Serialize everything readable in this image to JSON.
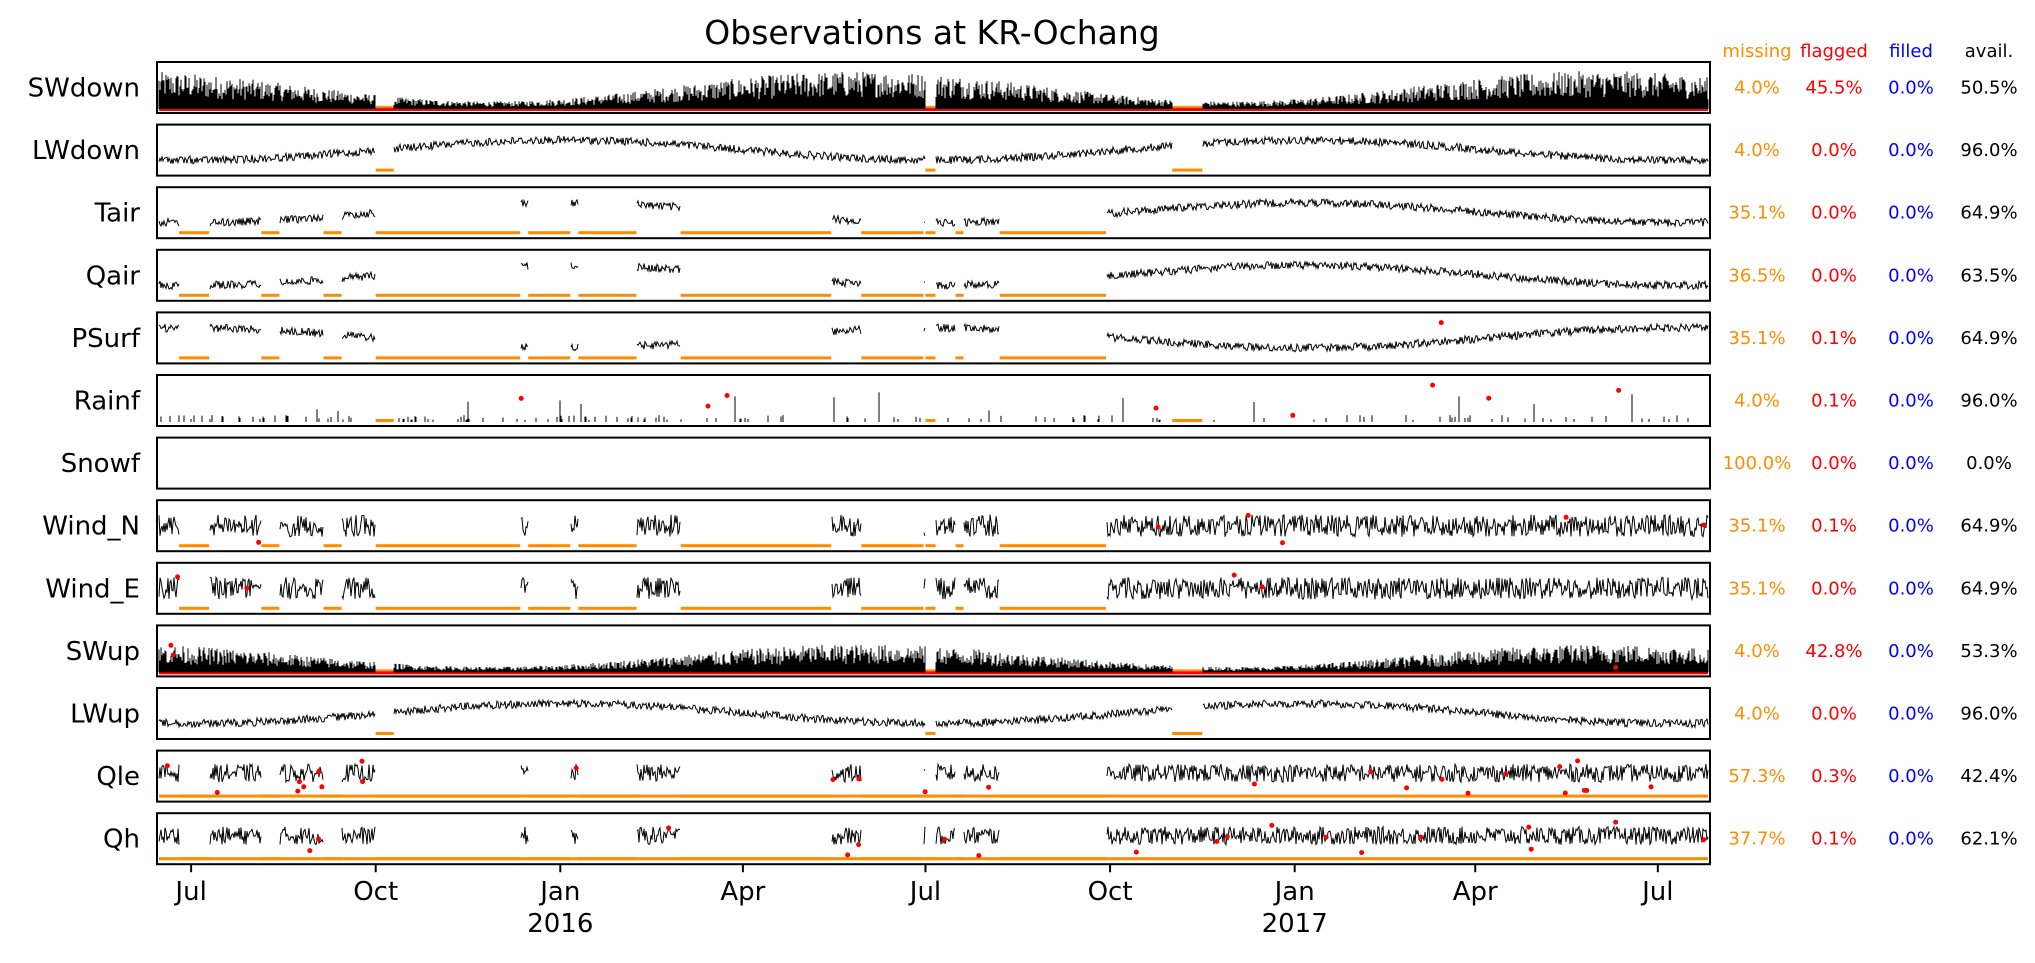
{
  "chart_data": {
    "type": "line",
    "title": "Observations at KR-Ochang",
    "x_range": [
      "2015-06-14",
      "2017-07-27"
    ],
    "x_ticks": [
      {
        "date": "2015-07-01",
        "label": "Jul",
        "year": ""
      },
      {
        "date": "2015-10-01",
        "label": "Oct",
        "year": ""
      },
      {
        "date": "2016-01-01",
        "label": "Jan",
        "year": "2016"
      },
      {
        "date": "2016-04-01",
        "label": "Apr",
        "year": ""
      },
      {
        "date": "2016-07-01",
        "label": "Jul",
        "year": ""
      },
      {
        "date": "2016-10-01",
        "label": "Oct",
        "year": ""
      },
      {
        "date": "2017-01-01",
        "label": "Jan",
        "year": "2017"
      },
      {
        "date": "2017-04-01",
        "label": "Apr",
        "year": ""
      },
      {
        "date": "2017-07-01",
        "label": "Jul",
        "year": ""
      }
    ],
    "stat_headers": {
      "missing": "missing",
      "flagged": "flagged",
      "filled": "filled",
      "avail": "avail."
    },
    "colors": {
      "missing": "#ff8c00",
      "flagged": "#ff0000",
      "filled": "#0000ff",
      "avail": "#000000",
      "series": "#000000"
    },
    "series": [
      {
        "name": "SWdown",
        "missing": "4.0%",
        "flagged": "45.5%",
        "filled": "0.0%",
        "avail": "50.5%"
      },
      {
        "name": "LWdown",
        "missing": "4.0%",
        "flagged": "0.0%",
        "filled": "0.0%",
        "avail": "96.0%"
      },
      {
        "name": "Tair",
        "missing": "35.1%",
        "flagged": "0.0%",
        "filled": "0.0%",
        "avail": "64.9%"
      },
      {
        "name": "Qair",
        "missing": "36.5%",
        "flagged": "0.0%",
        "filled": "0.0%",
        "avail": "63.5%"
      },
      {
        "name": "PSurf",
        "missing": "35.1%",
        "flagged": "0.1%",
        "filled": "0.0%",
        "avail": "64.9%"
      },
      {
        "name": "Rainf",
        "missing": "4.0%",
        "flagged": "0.1%",
        "filled": "0.0%",
        "avail": "96.0%"
      },
      {
        "name": "Snowf",
        "missing": "100.0%",
        "flagged": "0.0%",
        "filled": "0.0%",
        "avail": "0.0%"
      },
      {
        "name": "Wind_N",
        "missing": "35.1%",
        "flagged": "0.1%",
        "filled": "0.0%",
        "avail": "64.9%"
      },
      {
        "name": "Wind_E",
        "missing": "35.1%",
        "flagged": "0.0%",
        "filled": "0.0%",
        "avail": "64.9%"
      },
      {
        "name": "SWup",
        "missing": "4.0%",
        "flagged": "42.8%",
        "filled": "0.0%",
        "avail": "53.3%"
      },
      {
        "name": "LWup",
        "missing": "4.0%",
        "flagged": "0.0%",
        "filled": "0.0%",
        "avail": "96.0%"
      },
      {
        "name": "Qle",
        "missing": "57.3%",
        "flagged": "0.3%",
        "filled": "0.0%",
        "avail": "42.4%"
      },
      {
        "name": "Qh",
        "missing": "37.7%",
        "flagged": "0.1%",
        "filled": "0.0%",
        "avail": "62.1%"
      }
    ],
    "gaps": {
      "all": [
        [
          "2015-10-01",
          "2015-10-10"
        ],
        [
          "2016-07-01",
          "2016-07-06"
        ],
        [
          "2016-11-01",
          "2016-11-16"
        ]
      ],
      "met": [
        [
          "2015-06-25",
          "2015-07-10"
        ],
        [
          "2015-08-05",
          "2015-08-14"
        ],
        [
          "2015-09-05",
          "2015-09-14"
        ],
        [
          "2015-10-01",
          "2015-12-12"
        ],
        [
          "2015-12-16",
          "2016-01-06"
        ],
        [
          "2016-01-10",
          "2016-02-08"
        ],
        [
          "2016-03-01",
          "2016-05-15"
        ],
        [
          "2016-05-30",
          "2016-06-30"
        ],
        [
          "2016-07-01",
          "2016-07-06"
        ],
        [
          "2016-07-16",
          "2016-07-20"
        ],
        [
          "2016-08-07",
          "2016-09-29"
        ]
      ]
    }
  }
}
